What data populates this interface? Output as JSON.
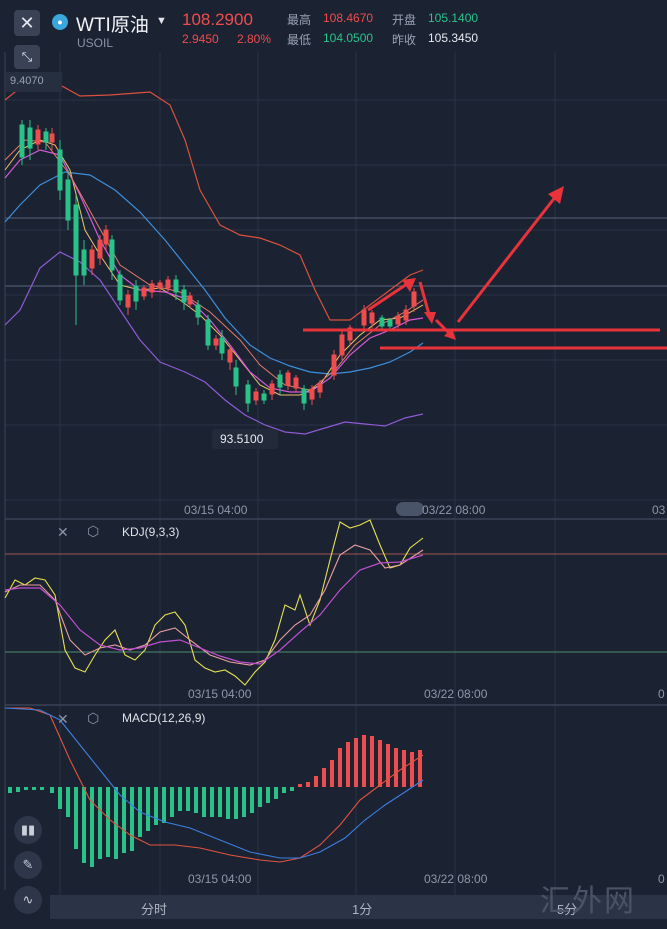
{
  "header": {
    "title": "WTI原油",
    "symbol": "USOIL",
    "price": "108.2900",
    "change": "2.9450",
    "change_pct": "2.80%",
    "stats": {
      "high_label": "最高",
      "high": "108.4670",
      "low_label": "最低",
      "low": "104.0500",
      "open_label": "开盘",
      "open": "105.1400",
      "prev_label": "昨收",
      "prev": "105.3450"
    }
  },
  "chart": {
    "high_marker": "9.4070",
    "low_marker": "93.5100",
    "dates": [
      "03/15 04:00",
      "03/22 08:00",
      "03"
    ],
    "kdj_label": "KDJ(9,3,3)",
    "kdj_dates": [
      "03/15 04:00",
      "03/22 08:00",
      "0"
    ],
    "macd_label": "MACD(12,26,9)",
    "macd_dates": [
      "03/15 04:00",
      "03/22 08:00",
      "0"
    ]
  },
  "tabs": [
    "分时",
    "1分",
    "5分"
  ],
  "watermark": "汇外网",
  "colors": {
    "up": "#ef4d4d",
    "down": "#29c38a",
    "accent": "#3aa6dc"
  },
  "icons": [
    "close-icon",
    "expand-icon",
    "caret-down-icon",
    "settings-icon",
    "candlestick-icon",
    "pencil-icon",
    "indicator-icon"
  ]
}
